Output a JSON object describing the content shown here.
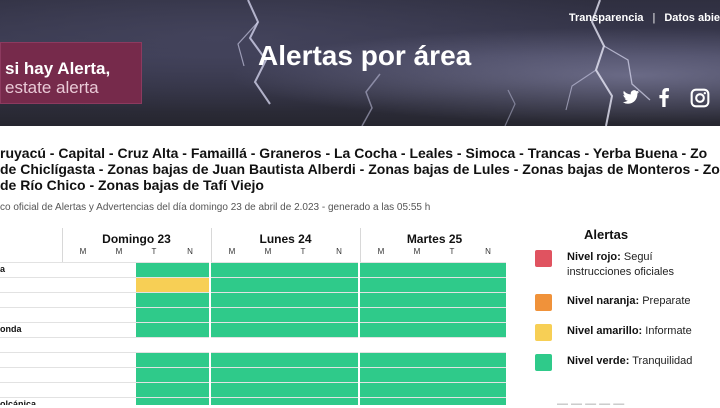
{
  "header": {
    "links": [
      "Transparencia",
      "Datos abie"
    ],
    "promo_line1": "si hay Alerta,",
    "promo_line2": "estate alerta",
    "title": "Alertas por área",
    "social": [
      {
        "icon": "twitter-icon"
      },
      {
        "icon": "facebook-icon"
      },
      {
        "icon": "instagram-icon"
      }
    ]
  },
  "areas": {
    "lines": [
      "ruyacú - Capital - Cruz Alta - Famaillá - Graneros - La Cocha - Leales - Simoca - Trancas - Yerba Buena - Zo",
      "de Chiclígasta - Zonas bajas de Juan Bautista Alberdi - Zonas bajas de Lules - Zonas bajas de Monteros - Zo",
      "de Río Chico - Zonas bajas de Tafí Viejo"
    ],
    "subtitle": "co oficial de Alertas y Advertencias del día domingo 23 de abril de 2.023 - generado a las 05:55 h"
  },
  "table": {
    "days": [
      {
        "name": "Domingo 23",
        "slots": [
          "M",
          "M",
          "T",
          "N"
        ]
      },
      {
        "name": "Lunes 24",
        "slots": [
          "M",
          "M",
          "T",
          "N"
        ]
      },
      {
        "name": "Martes 25",
        "slots": [
          "M",
          "M",
          "T",
          "N"
        ]
      }
    ],
    "rows": [
      {
        "label": "a",
        "levels": [
          "none",
          "none",
          "green",
          "green",
          "green",
          "green",
          "green",
          "green",
          "green",
          "green",
          "green",
          "green"
        ]
      },
      {
        "label": "",
        "levels": [
          "none",
          "none",
          "yellow",
          "yellow",
          "green",
          "green",
          "green",
          "green",
          "green",
          "green",
          "green",
          "green"
        ]
      },
      {
        "label": "",
        "levels": [
          "none",
          "none",
          "green",
          "green",
          "green",
          "green",
          "green",
          "green",
          "green",
          "green",
          "green",
          "green"
        ]
      },
      {
        "label": "",
        "levels": [
          "none",
          "none",
          "green",
          "green",
          "green",
          "green",
          "green",
          "green",
          "green",
          "green",
          "green",
          "green"
        ]
      },
      {
        "label": "onda",
        "levels": [
          "none",
          "none",
          "green",
          "green",
          "green",
          "green",
          "green",
          "green",
          "green",
          "green",
          "green",
          "green"
        ]
      },
      {
        "label": "",
        "levels": [
          "none",
          "none",
          "none",
          "none",
          "none",
          "none",
          "none",
          "none",
          "none",
          "none",
          "none",
          "none"
        ]
      },
      {
        "label": "",
        "levels": [
          "none",
          "none",
          "green",
          "green",
          "green",
          "green",
          "green",
          "green",
          "green",
          "green",
          "green",
          "green"
        ]
      },
      {
        "label": "",
        "levels": [
          "none",
          "none",
          "green",
          "green",
          "green",
          "green",
          "green",
          "green",
          "green",
          "green",
          "green",
          "green"
        ]
      },
      {
        "label": "",
        "levels": [
          "none",
          "none",
          "green",
          "green",
          "green",
          "green",
          "green",
          "green",
          "green",
          "green",
          "green",
          "green"
        ]
      },
      {
        "label": "olcánica",
        "levels": [
          "none",
          "none",
          "green",
          "green",
          "green",
          "green",
          "green",
          "green",
          "green",
          "green",
          "green",
          "green"
        ]
      }
    ]
  },
  "legend": {
    "title": "Alertas",
    "items": [
      {
        "level": "Nivel rojo:",
        "text": "Seguí instrucciones oficiales",
        "color": "#e05360"
      },
      {
        "level": "Nivel naranja:",
        "text": "Preparate",
        "color": "#f0923a"
      },
      {
        "level": "Nivel amarillo:",
        "text": "Informate",
        "color": "#f7cf55"
      },
      {
        "level": "Nivel verde:",
        "text": "Tranquilidad",
        "color": "#2fca8a"
      }
    ]
  },
  "colors": {
    "green": "#2fca8a",
    "yellow": "#f7cf55",
    "promo": "#762a4b"
  }
}
